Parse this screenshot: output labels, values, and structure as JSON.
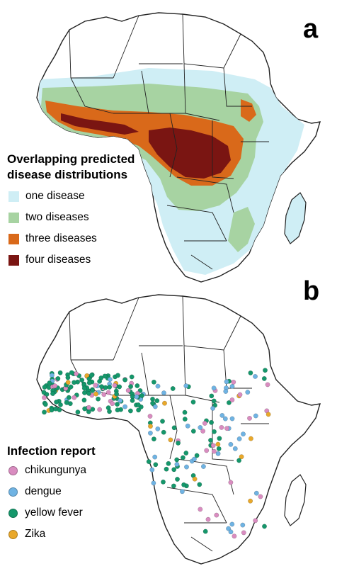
{
  "panel_a": {
    "label": "a",
    "legend_title": "Overlapping predicted disease distributions",
    "legend_title_line1": "Overlapping predicted",
    "legend_title_line2": "disease distributions",
    "legend_items": [
      {
        "label": "one disease",
        "color": "#cfeef5"
      },
      {
        "label": "two diseases",
        "color": "#a7d3a2"
      },
      {
        "label": "three diseases",
        "color": "#d9691a"
      },
      {
        "label": "four diseases",
        "color": "#7a1512"
      }
    ]
  },
  "panel_b": {
    "label": "b",
    "legend_title": "Infection report",
    "legend_items": [
      {
        "label": "chikungunya",
        "color": "#d98cc0"
      },
      {
        "label": "dengue",
        "color": "#6fb3e3"
      },
      {
        "label": "yellow fever",
        "color": "#15976b"
      },
      {
        "label": "Zika",
        "color": "#e9a82a"
      }
    ]
  }
}
